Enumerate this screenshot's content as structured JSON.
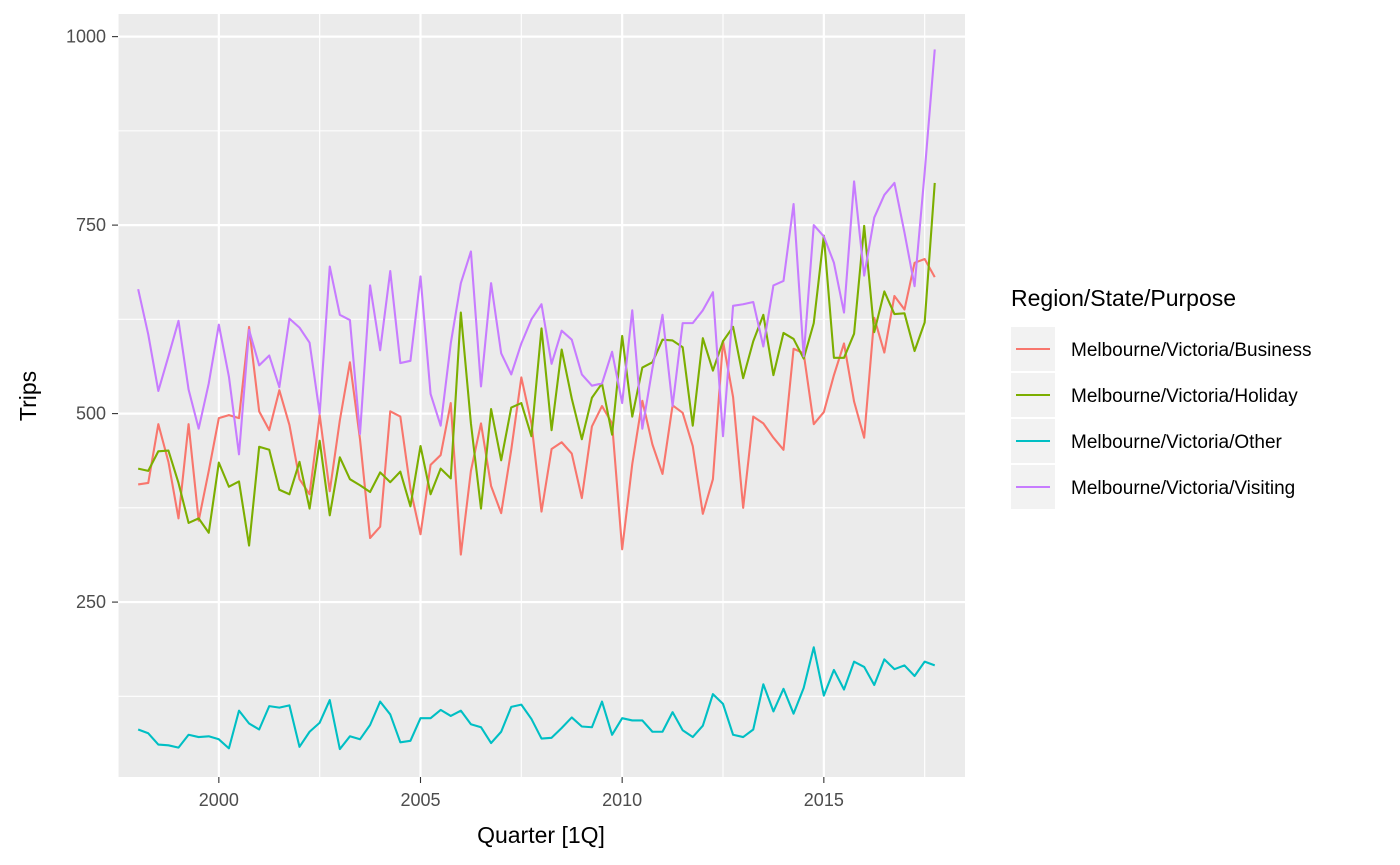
{
  "chart_data": {
    "type": "line",
    "title": "",
    "xlabel": "Quarter [1Q]",
    "ylabel": "Trips",
    "xlim": [
      1997.5,
      2018.5
    ],
    "ylim": [
      18,
      1030
    ],
    "x_ticks": [
      2000,
      2005,
      2010,
      2015
    ],
    "x_tick_labels": [
      "2000",
      "2005",
      "2010",
      "2015"
    ],
    "y_ticks": [
      250,
      500,
      750,
      1000
    ],
    "y_tick_labels": [
      "250",
      "500",
      "750",
      "1000"
    ],
    "grid": true,
    "panel_background": "#ebebeb",
    "legend": {
      "title": "Region/State/Purpose",
      "position": "right"
    },
    "x_start": 1998.0,
    "x_step": 0.25,
    "series": [
      {
        "name": "Melbourne/Victoria/Business",
        "color": "#f8766d",
        "values": [
          406,
          408,
          486,
          436,
          361,
          486,
          358,
          424,
          494,
          498,
          494,
          615,
          503,
          478,
          531,
          485,
          413,
          393,
          498,
          397,
          491,
          568,
          466,
          335,
          350,
          503,
          496,
          400,
          340,
          432,
          445,
          514,
          313,
          424,
          487,
          404,
          368,
          452,
          548,
          487,
          370,
          453,
          462,
          447,
          388,
          483,
          510,
          487,
          320,
          433,
          517,
          459,
          420,
          511,
          501,
          457,
          367,
          413,
          596,
          522,
          375,
          496,
          487,
          468,
          452,
          586,
          580,
          486,
          502,
          551,
          593,
          516,
          468,
          627,
          581,
          656,
          638,
          700,
          705,
          681
        ]
      },
      {
        "name": "Melbourne/Victoria/Holiday",
        "color": "#7cae00",
        "values": [
          427,
          424,
          450,
          451,
          408,
          355,
          361,
          342,
          435,
          403,
          410,
          325,
          456,
          452,
          399,
          393,
          436,
          374,
          464,
          365,
          442,
          413,
          405,
          396,
          422,
          409,
          423,
          377,
          457,
          393,
          427,
          414,
          634,
          487,
          374,
          506,
          438,
          508,
          514,
          470,
          613,
          478,
          585,
          520,
          466,
          521,
          540,
          472,
          603,
          496,
          561,
          568,
          598,
          597,
          588,
          484,
          600,
          557,
          596,
          615,
          547,
          596,
          631,
          551,
          607,
          599,
          573,
          620,
          736,
          574,
          574,
          606,
          749,
          608,
          662,
          632,
          633,
          583,
          621,
          806
        ]
      },
      {
        "name": "Melbourne/Victoria/Other",
        "color": "#00bfc4",
        "values": [
          81,
          76,
          61,
          60,
          57,
          74,
          71,
          72,
          68,
          56,
          106,
          89,
          81,
          112,
          110,
          113,
          58,
          78,
          90,
          120,
          55,
          72,
          68,
          87,
          118,
          101,
          64,
          66,
          96,
          96,
          107,
          99,
          106,
          88,
          84,
          63,
          78,
          111,
          114,
          95,
          69,
          70,
          83,
          97,
          85,
          84,
          118,
          74,
          96,
          93,
          93,
          78,
          78,
          104,
          80,
          71,
          86,
          128,
          115,
          74,
          71,
          81,
          141,
          105,
          135,
          102,
          136,
          190,
          126,
          160,
          134,
          171,
          164,
          140,
          174,
          161,
          166,
          152,
          171,
          166
        ]
      },
      {
        "name": "Melbourne/Victoria/Visiting",
        "color": "#c77cff",
        "values": [
          665,
          605,
          530,
          576,
          623,
          532,
          480,
          540,
          618,
          549,
          446,
          611,
          564,
          577,
          535,
          626,
          614,
          594,
          500,
          695,
          631,
          624,
          473,
          670,
          584,
          689,
          567,
          570,
          682,
          526,
          484,
          593,
          673,
          715,
          536,
          673,
          580,
          552,
          593,
          625,
          645,
          566,
          610,
          598,
          552,
          537,
          540,
          582,
          514,
          637,
          480,
          560,
          631,
          510,
          620,
          620,
          637,
          661,
          470,
          643,
          645,
          648,
          589,
          670,
          676,
          778,
          576,
          750,
          735,
          700,
          634,
          808,
          683,
          760,
          790,
          806,
          740,
          669,
          820,
          983
        ]
      }
    ]
  }
}
